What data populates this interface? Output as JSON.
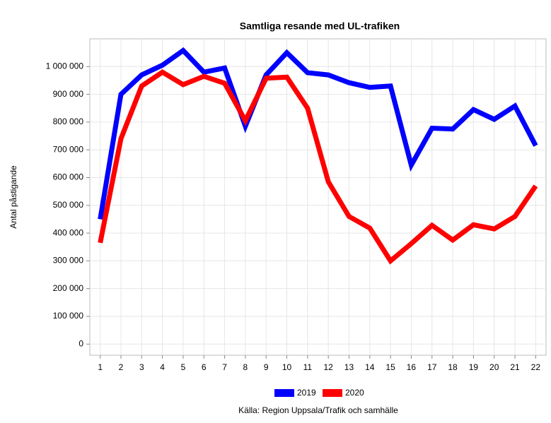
{
  "chart_data": {
    "type": "line",
    "title": "Samtliga resande med UL-trafiken",
    "ylabel": "Antal påstigande",
    "source": "Källa: Region Uppsala/Trafik och samhälle",
    "x": [
      1,
      2,
      3,
      4,
      5,
      6,
      7,
      8,
      9,
      10,
      11,
      12,
      13,
      14,
      15,
      16,
      17,
      18,
      19,
      20,
      21,
      22
    ],
    "series": [
      {
        "name": "2019",
        "color": "#0000ff",
        "values": [
          450000,
          900000,
          970000,
          1005000,
          1058000,
          980000,
          995000,
          785000,
          970000,
          1050000,
          978000,
          970000,
          942000,
          925000,
          930000,
          645000,
          778000,
          775000,
          845000,
          810000,
          858000,
          715000
        ]
      },
      {
        "name": "2020",
        "color": "#ff0000",
        "values": [
          365000,
          740000,
          930000,
          980000,
          935000,
          965000,
          940000,
          805000,
          958000,
          962000,
          850000,
          585000,
          460000,
          418000,
          300000,
          362000,
          428000,
          375000,
          430000,
          415000,
          460000,
          570000
        ]
      }
    ],
    "xlim": [
      0.5,
      22.5
    ],
    "xticks": [
      1,
      2,
      3,
      4,
      5,
      6,
      7,
      8,
      9,
      10,
      11,
      12,
      13,
      14,
      15,
      16,
      17,
      18,
      19,
      20,
      21,
      22
    ],
    "ylim": [
      -40000,
      1100000
    ],
    "yticks": [
      0,
      {
        "value": 100000,
        "label": "100 000"
      },
      {
        "value": 200000,
        "label": "200 000"
      },
      {
        "value": 300000,
        "label": "300 000"
      },
      {
        "value": 400000,
        "label": "400 000"
      },
      {
        "value": 500000,
        "label": "500 000"
      },
      {
        "value": 600000,
        "label": "600 000"
      },
      {
        "value": 700000,
        "label": "700 000"
      },
      {
        "value": 800000,
        "label": "800 000"
      },
      {
        "value": 900000,
        "label": "900 000"
      },
      {
        "value": 1000000,
        "label": "1 000 000"
      }
    ],
    "grid": true,
    "legend": "bottom"
  }
}
